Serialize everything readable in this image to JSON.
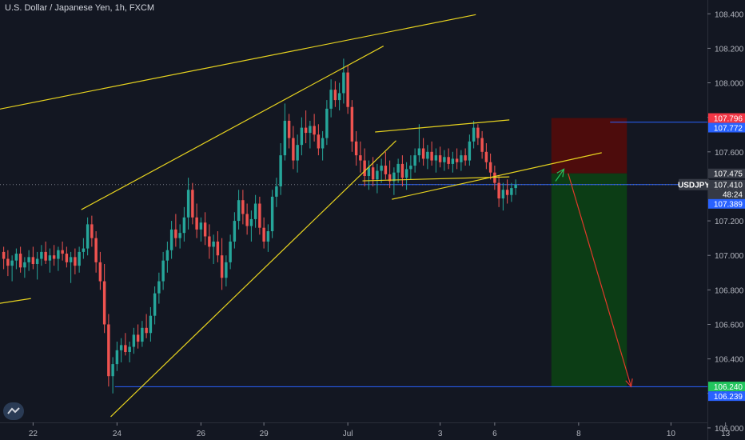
{
  "header": {
    "title": "U.S. Dollar / Japanese Yen, 1h, FXCM"
  },
  "colors": {
    "background": "#131722",
    "up": "#26a69a",
    "down": "#ef5350",
    "trendline": "#e6d21f",
    "level": "#2962ff",
    "arrow": "#e03a2a",
    "stop_zone": "#4d0c0c",
    "target_zone": "#0c3d15",
    "axis_text": "#b2b5be"
  },
  "chart_data": {
    "type": "candlestick",
    "symbol": "USDJPY",
    "interval": "1h",
    "title": "U.S. Dollar / Japanese Yen, 1h, FXCM",
    "y_axis": {
      "range": [
        105.93,
        108.48
      ],
      "ticks": [
        "108.400",
        "108.200",
        "108.000",
        "107.800",
        "107.600",
        "107.400",
        "107.200",
        "107.000",
        "106.800",
        "106.600",
        "106.400",
        "106.200",
        "106.000"
      ]
    },
    "x_axis": {
      "tick_labels": [
        {
          "label": "22",
          "bar": 7
        },
        {
          "label": "24",
          "bar": 27
        },
        {
          "label": "26",
          "bar": 47
        },
        {
          "label": "29",
          "bar": 62
        },
        {
          "label": "Jul",
          "bar": 82
        },
        {
          "label": "3",
          "bar": 104
        },
        {
          "label": "6",
          "bar": 117
        },
        {
          "label": "8",
          "bar": 137
        },
        {
          "label": "10",
          "bar": 159
        },
        {
          "label": "13",
          "bar": 172
        }
      ]
    },
    "price_labels": [
      {
        "text": "107.796",
        "value": 107.796,
        "bg": "#f23645",
        "fg": "#ffffff"
      },
      {
        "text": "107.772",
        "value": 107.772,
        "bg": "#2962ff",
        "fg": "#ffffff"
      },
      {
        "text": "107.475",
        "value": 107.475,
        "bg": "#363a45",
        "fg": "#ffffff"
      },
      {
        "text": "USDJPY",
        "value": 107.41,
        "bg": "#363a45",
        "fg": "#ffffff",
        "side": "left"
      },
      {
        "text": "107.410",
        "value": 107.41,
        "bg": "#363a45",
        "fg": "#ffffff"
      },
      {
        "text": "48:24",
        "value": 107.355,
        "bg": "#363a45",
        "fg": "#ffffff"
      },
      {
        "text": "107.389",
        "value": 107.389,
        "bg": "#2962ff",
        "fg": "#ffffff"
      },
      {
        "text": "106.240",
        "value": 106.24,
        "bg": "#22c55e",
        "fg": "#ffffff"
      },
      {
        "text": "106.239",
        "value": 106.239,
        "bg": "#2962ff",
        "fg": "#ffffff"
      }
    ],
    "horizontal_levels": [
      {
        "value": 107.772,
        "bar_from": 145,
        "bar_to": 185,
        "color": "#2962ff"
      },
      {
        "value": 106.239,
        "bar_from": 27,
        "bar_to": 185,
        "color": "#2962ff"
      },
      {
        "value": 107.41,
        "bar_from": 85,
        "bar_to": 178,
        "color": "#2962ff"
      }
    ],
    "trendlines": [
      {
        "from": {
          "bar": -1,
          "price": 107.845
        },
        "to": {
          "bar": 113,
          "price": 108.395
        }
      },
      {
        "from": {
          "bar": 19,
          "price": 107.265
        },
        "to": {
          "bar": 91,
          "price": 108.213
        }
      },
      {
        "from": {
          "bar": 26,
          "price": 106.065
        },
        "to": {
          "bar": 94,
          "price": 107.665
        }
      },
      {
        "from": {
          "bar": -1,
          "price": 106.72
        },
        "to": {
          "bar": 7,
          "price": 106.75
        }
      },
      {
        "from": {
          "bar": 89,
          "price": 107.715
        },
        "to": {
          "bar": 121,
          "price": 107.785
        }
      },
      {
        "from": {
          "bar": 86,
          "price": 107.432
        },
        "to": {
          "bar": 121,
          "price": 107.455
        }
      },
      {
        "from": {
          "bar": 93,
          "price": 107.325
        },
        "to": {
          "bar": 143,
          "price": 107.595
        }
      }
    ],
    "position": {
      "entry": 107.475,
      "stop": 107.796,
      "target": 106.24,
      "bar_from": 131,
      "bar_to": 149
    },
    "arrows": [
      {
        "from": {
          "bar": 135,
          "price": 107.475
        },
        "to": {
          "bar": 150,
          "price": 106.24
        },
        "color": "#e03a2a"
      },
      {
        "from": {
          "bar": 132,
          "price": 107.43
        },
        "to": {
          "bar": 134,
          "price": 107.5
        },
        "color": "#22c55e"
      }
    ],
    "bars": [
      [
        107.02,
        107.05,
        106.92,
        106.98
      ],
      [
        106.98,
        107.03,
        106.88,
        106.94
      ],
      [
        106.94,
        107.0,
        106.85,
        106.97
      ],
      [
        106.97,
        107.04,
        106.92,
        107.01
      ],
      [
        107.01,
        107.05,
        106.9,
        106.93
      ],
      [
        106.93,
        106.99,
        106.87,
        106.96
      ],
      [
        106.96,
        107.03,
        106.91,
        106.99
      ],
      [
        106.99,
        107.05,
        106.92,
        106.95
      ],
      [
        106.95,
        107.02,
        106.86,
        106.98
      ],
      [
        106.98,
        107.06,
        106.94,
        107.02
      ],
      [
        107.02,
        107.08,
        106.95,
        106.97
      ],
      [
        106.97,
        107.04,
        106.9,
        107.0
      ],
      [
        107.0,
        107.06,
        106.94,
        106.98
      ],
      [
        106.98,
        107.05,
        106.91,
        107.03
      ],
      [
        107.03,
        107.08,
        106.97,
        107.01
      ],
      [
        107.01,
        107.05,
        106.93,
        106.96
      ],
      [
        106.96,
        107.02,
        106.84,
        106.99
      ],
      [
        106.99,
        107.04,
        106.89,
        106.94
      ],
      [
        106.94,
        107.05,
        106.9,
        107.02
      ],
      [
        107.02,
        107.1,
        106.98,
        107.04
      ],
      [
        107.04,
        107.22,
        107.0,
        107.18
      ],
      [
        107.18,
        107.23,
        107.05,
        107.1
      ],
      [
        107.1,
        107.14,
        106.9,
        106.96
      ],
      [
        106.96,
        107.02,
        106.8,
        106.85
      ],
      [
        106.85,
        106.95,
        106.55,
        106.6
      ],
      [
        106.6,
        106.66,
        106.24,
        106.3
      ],
      [
        106.3,
        106.41,
        106.2,
        106.37
      ],
      [
        106.37,
        106.5,
        106.33,
        106.45
      ],
      [
        106.45,
        106.52,
        106.38,
        106.48
      ],
      [
        106.48,
        106.55,
        106.42,
        106.44
      ],
      [
        106.44,
        106.5,
        106.38,
        106.47
      ],
      [
        106.47,
        106.58,
        106.43,
        106.54
      ],
      [
        106.54,
        106.6,
        106.46,
        106.5
      ],
      [
        106.5,
        106.62,
        106.47,
        106.58
      ],
      [
        106.58,
        106.66,
        106.52,
        106.55
      ],
      [
        106.55,
        106.7,
        106.5,
        106.65
      ],
      [
        106.65,
        106.82,
        106.6,
        106.78
      ],
      [
        106.78,
        106.9,
        106.72,
        106.85
      ],
      [
        106.85,
        107.02,
        106.8,
        106.97
      ],
      [
        106.97,
        107.08,
        106.9,
        107.03
      ],
      [
        107.03,
        107.2,
        106.98,
        107.15
      ],
      [
        107.15,
        107.24,
        107.05,
        107.1
      ],
      [
        107.1,
        107.18,
        107.04,
        107.13
      ],
      [
        107.13,
        107.28,
        107.08,
        107.22
      ],
      [
        107.22,
        107.45,
        107.15,
        107.38
      ],
      [
        107.38,
        107.42,
        107.18,
        107.22
      ],
      [
        107.22,
        107.3,
        107.1,
        107.15
      ],
      [
        107.15,
        107.22,
        107.08,
        107.19
      ],
      [
        107.19,
        107.25,
        107.06,
        107.11
      ],
      [
        107.11,
        107.18,
        106.98,
        107.05
      ],
      [
        107.05,
        107.12,
        106.95,
        107.08
      ],
      [
        107.08,
        107.14,
        106.96,
        107.0
      ],
      [
        107.0,
        107.1,
        106.8,
        106.87
      ],
      [
        106.87,
        107.0,
        106.82,
        106.96
      ],
      [
        106.96,
        107.12,
        106.92,
        107.08
      ],
      [
        107.08,
        107.25,
        107.04,
        107.2
      ],
      [
        107.2,
        107.38,
        107.15,
        107.32
      ],
      [
        107.32,
        107.38,
        107.18,
        107.24
      ],
      [
        107.24,
        107.3,
        107.12,
        107.17
      ],
      [
        107.17,
        107.26,
        107.08,
        107.21
      ],
      [
        107.21,
        107.35,
        107.16,
        107.3
      ],
      [
        107.3,
        107.34,
        107.12,
        107.16
      ],
      [
        107.16,
        107.22,
        107.04,
        107.08
      ],
      [
        107.08,
        107.18,
        107.02,
        107.14
      ],
      [
        107.14,
        107.38,
        107.1,
        107.34
      ],
      [
        107.34,
        107.45,
        107.28,
        107.4
      ],
      [
        107.4,
        107.65,
        107.35,
        107.58
      ],
      [
        107.58,
        107.88,
        107.55,
        107.78
      ],
      [
        107.78,
        107.82,
        107.62,
        107.68
      ],
      [
        107.68,
        107.75,
        107.5,
        107.55
      ],
      [
        107.55,
        107.7,
        107.48,
        107.64
      ],
      [
        107.64,
        107.8,
        107.58,
        107.74
      ],
      [
        107.74,
        107.84,
        107.65,
        107.71
      ],
      [
        107.71,
        107.78,
        107.62,
        107.75
      ],
      [
        107.75,
        107.82,
        107.66,
        107.7
      ],
      [
        107.7,
        107.76,
        107.58,
        107.62
      ],
      [
        107.62,
        107.72,
        107.55,
        107.68
      ],
      [
        107.68,
        107.9,
        107.64,
        107.85
      ],
      [
        107.85,
        108.02,
        107.8,
        107.96
      ],
      [
        107.96,
        108.01,
        107.86,
        107.9
      ],
      [
        107.9,
        108.0,
        107.84,
        107.94
      ],
      [
        107.94,
        108.14,
        107.88,
        108.06
      ],
      [
        108.06,
        108.1,
        107.82,
        107.86
      ],
      [
        107.86,
        107.9,
        107.6,
        107.66
      ],
      [
        107.66,
        107.72,
        107.52,
        107.58
      ],
      [
        107.58,
        107.66,
        107.48,
        107.55
      ],
      [
        107.55,
        107.62,
        107.4,
        107.46
      ],
      [
        107.46,
        107.55,
        107.38,
        107.51
      ],
      [
        107.51,
        107.57,
        107.4,
        107.44
      ],
      [
        107.44,
        107.53,
        107.36,
        107.49
      ],
      [
        107.49,
        107.56,
        107.42,
        107.52
      ],
      [
        107.52,
        107.6,
        107.44,
        107.47
      ],
      [
        107.47,
        107.55,
        107.39,
        107.43
      ],
      [
        107.43,
        107.51,
        107.35,
        107.48
      ],
      [
        107.48,
        107.56,
        107.42,
        107.53
      ],
      [
        107.53,
        107.58,
        107.4,
        107.45
      ],
      [
        107.45,
        107.54,
        107.38,
        107.5
      ],
      [
        107.5,
        107.58,
        107.44,
        107.52
      ],
      [
        107.52,
        107.62,
        107.48,
        107.58
      ],
      [
        107.58,
        107.76,
        107.54,
        107.62
      ],
      [
        107.62,
        107.68,
        107.52,
        107.56
      ],
      [
        107.56,
        107.64,
        107.5,
        107.6
      ],
      [
        107.6,
        107.66,
        107.52,
        107.55
      ],
      [
        107.55,
        107.62,
        107.48,
        107.58
      ],
      [
        107.58,
        107.63,
        107.51,
        107.54
      ],
      [
        107.54,
        107.61,
        107.49,
        107.57
      ],
      [
        107.57,
        107.62,
        107.5,
        107.53
      ],
      [
        107.53,
        107.6,
        107.48,
        107.56
      ],
      [
        107.56,
        107.62,
        107.5,
        107.54
      ],
      [
        107.54,
        107.61,
        107.49,
        107.58
      ],
      [
        107.58,
        107.62,
        107.52,
        107.55
      ],
      [
        107.55,
        107.7,
        107.52,
        107.66
      ],
      [
        107.66,
        107.78,
        107.62,
        107.74
      ],
      [
        107.74,
        107.76,
        107.64,
        107.68
      ],
      [
        107.68,
        107.72,
        107.56,
        107.6
      ],
      [
        107.6,
        107.65,
        107.5,
        107.54
      ],
      [
        107.54,
        107.59,
        107.44,
        107.48
      ],
      [
        107.48,
        107.52,
        107.38,
        107.42
      ],
      [
        107.42,
        107.46,
        107.28,
        107.33
      ],
      [
        107.33,
        107.42,
        107.26,
        107.38
      ],
      [
        107.38,
        107.44,
        107.3,
        107.35
      ],
      [
        107.35,
        107.42,
        107.31,
        107.39
      ],
      [
        107.39,
        107.44,
        107.35,
        107.41
      ]
    ]
  }
}
